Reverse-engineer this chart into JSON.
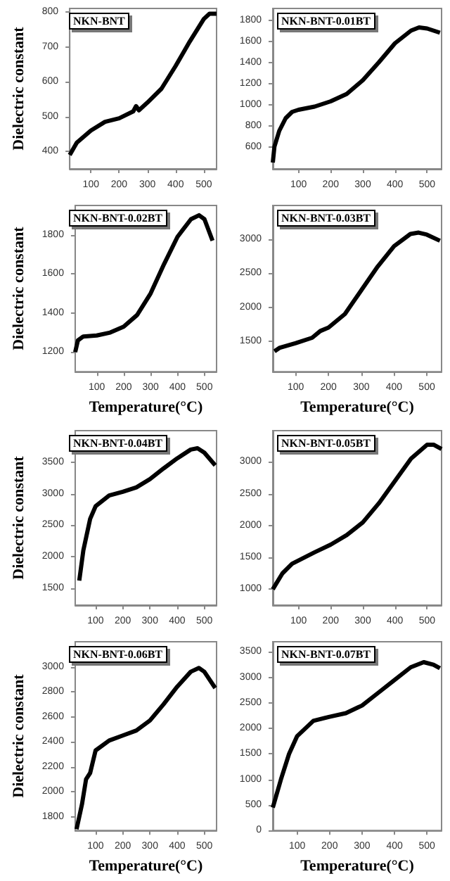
{
  "chart_data": [
    {
      "type": "line",
      "title": "NKN-BNT",
      "ylabel": "Dielectric constant",
      "color": "#000000",
      "xlim": [
        25,
        545
      ],
      "ylim": [
        350,
        810
      ],
      "xticks": [
        100,
        200,
        300,
        400,
        500
      ],
      "yticks": [
        400,
        500,
        600,
        700,
        800
      ],
      "x": [
        25,
        50,
        100,
        150,
        200,
        250,
        260,
        270,
        300,
        350,
        400,
        450,
        500,
        520,
        545
      ],
      "values": [
        390,
        425,
        460,
        485,
        495,
        515,
        530,
        518,
        540,
        580,
        645,
        715,
        780,
        795,
        795
      ]
    },
    {
      "type": "line",
      "title": "NKN-BNT-0.01BT",
      "color": "#000000",
      "xlim": [
        20,
        545
      ],
      "ylim": [
        390,
        1910
      ],
      "xticks": [
        100,
        200,
        300,
        400,
        500
      ],
      "yticks": [
        600,
        800,
        1000,
        1200,
        1400,
        1600,
        1800
      ],
      "x": [
        20,
        25,
        40,
        60,
        80,
        100,
        150,
        200,
        250,
        300,
        350,
        400,
        450,
        475,
        500,
        540
      ],
      "values": [
        450,
        600,
        750,
        870,
        930,
        950,
        980,
        1030,
        1100,
        1230,
        1400,
        1580,
        1700,
        1730,
        1720,
        1680
      ]
    },
    {
      "type": "line",
      "title": "NKN-BNT-0.02BT",
      "xlabel": "Temperature(°C)",
      "ylabel": "Dielectric constant",
      "color": "#000000",
      "xlim": [
        20,
        545
      ],
      "ylim": [
        1100,
        1950
      ],
      "xticks": [
        100,
        200,
        300,
        400,
        500
      ],
      "yticks": [
        1200,
        1400,
        1600,
        1800
      ],
      "x": [
        20,
        30,
        50,
        100,
        150,
        200,
        250,
        300,
        350,
        400,
        450,
        480,
        500,
        530
      ],
      "values": [
        1200,
        1260,
        1280,
        1285,
        1300,
        1330,
        1390,
        1500,
        1650,
        1790,
        1880,
        1900,
        1880,
        1770
      ]
    },
    {
      "type": "line",
      "title": "NKN-BNT-0.03BT",
      "xlabel": "Temperature(°C)",
      "color": "#000000",
      "xlim": [
        30,
        545
      ],
      "ylim": [
        1050,
        3500
      ],
      "xticks": [
        100,
        200,
        300,
        400,
        500
      ],
      "yticks": [
        1500,
        2000,
        2500,
        3000
      ],
      "x": [
        35,
        50,
        100,
        150,
        175,
        200,
        250,
        300,
        350,
        400,
        450,
        475,
        500,
        540
      ],
      "values": [
        1350,
        1400,
        1470,
        1550,
        1650,
        1700,
        1900,
        2250,
        2600,
        2900,
        3080,
        3100,
        3070,
        2980
      ]
    },
    {
      "type": "line",
      "title": "NKN-BNT-0.04BT",
      "ylabel": "Dielectric constant",
      "color": "#000000",
      "xlim": [
        25,
        545
      ],
      "ylim": [
        1230,
        4000
      ],
      "xticks": [
        100,
        200,
        300,
        400,
        500
      ],
      "yticks": [
        1500,
        2000,
        2500,
        3000,
        3500
      ],
      "x": [
        40,
        55,
        80,
        100,
        150,
        200,
        250,
        300,
        350,
        400,
        450,
        475,
        500,
        540
      ],
      "values": [
        1620,
        2100,
        2600,
        2800,
        2970,
        3030,
        3100,
        3230,
        3400,
        3560,
        3700,
        3720,
        3650,
        3450
      ]
    },
    {
      "type": "line",
      "title": "NKN-BNT-0.05BT",
      "color": "#000000",
      "xlim": [
        20,
        545
      ],
      "ylim": [
        750,
        3490
      ],
      "xticks": [
        100,
        200,
        300,
        400,
        500
      ],
      "yticks": [
        1000,
        1500,
        2000,
        2500,
        3000
      ],
      "x": [
        20,
        50,
        80,
        150,
        200,
        250,
        300,
        350,
        400,
        450,
        500,
        520,
        545
      ],
      "values": [
        1000,
        1250,
        1400,
        1580,
        1700,
        1850,
        2050,
        2350,
        2700,
        3050,
        3270,
        3270,
        3200
      ]
    },
    {
      "type": "line",
      "title": "NKN-BNT-0.06BT",
      "xlabel": "Temperature(°C)",
      "ylabel": "Dielectric constant",
      "color": "#000000",
      "xlim": [
        25,
        545
      ],
      "ylim": [
        1690,
        3200
      ],
      "xticks": [
        100,
        200,
        300,
        400,
        500
      ],
      "yticks": [
        1800,
        2000,
        2200,
        2400,
        2600,
        2800,
        3000
      ],
      "x": [
        30,
        50,
        65,
        80,
        100,
        150,
        200,
        250,
        300,
        350,
        400,
        450,
        480,
        500,
        540
      ],
      "values": [
        1700,
        1900,
        2100,
        2150,
        2330,
        2410,
        2450,
        2490,
        2570,
        2700,
        2840,
        2960,
        2990,
        2960,
        2830
      ]
    },
    {
      "type": "line",
      "title": "NKN-BNT-0.07BT",
      "xlabel": "Temperature(°C)",
      "color": "#000000",
      "xlim": [
        25,
        545
      ],
      "ylim": [
        0,
        3700
      ],
      "xticks": [
        100,
        200,
        300,
        400,
        500
      ],
      "yticks": [
        0,
        500,
        1000,
        1500,
        2000,
        2500,
        3000,
        3500
      ],
      "x": [
        25,
        50,
        75,
        100,
        150,
        200,
        250,
        300,
        350,
        400,
        450,
        490,
        520,
        540
      ],
      "values": [
        450,
        1000,
        1500,
        1850,
        2150,
        2230,
        2300,
        2450,
        2700,
        2950,
        3200,
        3300,
        3250,
        3180
      ]
    }
  ]
}
